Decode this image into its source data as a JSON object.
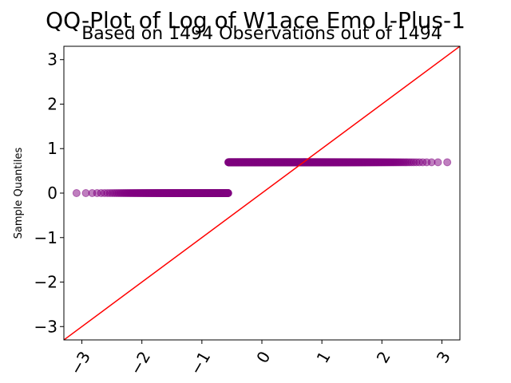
{
  "chart_data": {
    "type": "scatter",
    "title": "QQ-Plot of Log of W1ace Emo I-Plus-1",
    "subtitle": "Based on 1494 Observations out of 1494",
    "xlabel": "",
    "ylabel": "Sample Quantiles",
    "xlim": [
      -3.3,
      3.3
    ],
    "ylim": [
      -3.3,
      3.3
    ],
    "x_ticks": [
      -3,
      -2,
      -1,
      0,
      1,
      2,
      3
    ],
    "x_tick_labels": [
      "−3",
      "−2",
      "−1",
      "0",
      "1",
      "2",
      "3"
    ],
    "y_ticks": [
      -3,
      -2,
      -1,
      0,
      1,
      2,
      3
    ],
    "y_tick_labels": [
      "−3",
      "−2",
      "−1",
      "0",
      "1",
      "2",
      "3"
    ],
    "grid": false,
    "legend": "none",
    "colors": {
      "points": "#800080",
      "reference_line": "#ff0000",
      "axes": "#000000"
    },
    "point_groups": [
      {
        "y": 0.0,
        "x_range": [
          -3.2,
          -0.45
        ],
        "count": 430
      },
      {
        "y": 0.693,
        "x_range": [
          -0.45,
          3.2
        ],
        "count": 1064
      }
    ],
    "reference_line": {
      "slope": 1,
      "intercept": 0
    }
  }
}
